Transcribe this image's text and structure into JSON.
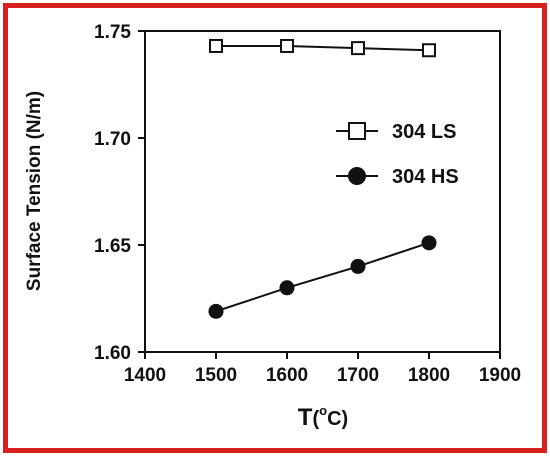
{
  "chart_data": {
    "type": "line",
    "xlabel": "T",
    "xlabel_unit": "(",
    "xlabel_unit_sup": "o",
    "xlabel_unit_end": "C)",
    "ylabel": "Surface Tension (N/m)",
    "xlim": [
      1400,
      1900
    ],
    "ylim": [
      1.6,
      1.75
    ],
    "xticks": [
      "1400",
      "1500",
      "1600",
      "1700",
      "1800",
      "1900"
    ],
    "yticks": [
      "1.60",
      "1.65",
      "1.70",
      "1.75"
    ],
    "legend_position": "center-right",
    "series": [
      {
        "name": "304 LS",
        "marker": "open-square",
        "x": [
          1500,
          1600,
          1700,
          1800
        ],
        "y": [
          1.743,
          1.743,
          1.742,
          1.741
        ]
      },
      {
        "name": "304 HS",
        "marker": "filled-circle",
        "x": [
          1500,
          1600,
          1700,
          1800
        ],
        "y": [
          1.619,
          1.63,
          1.64,
          1.651
        ]
      }
    ],
    "colors": {
      "frame": "#d8201f",
      "ink": "#111111"
    }
  }
}
